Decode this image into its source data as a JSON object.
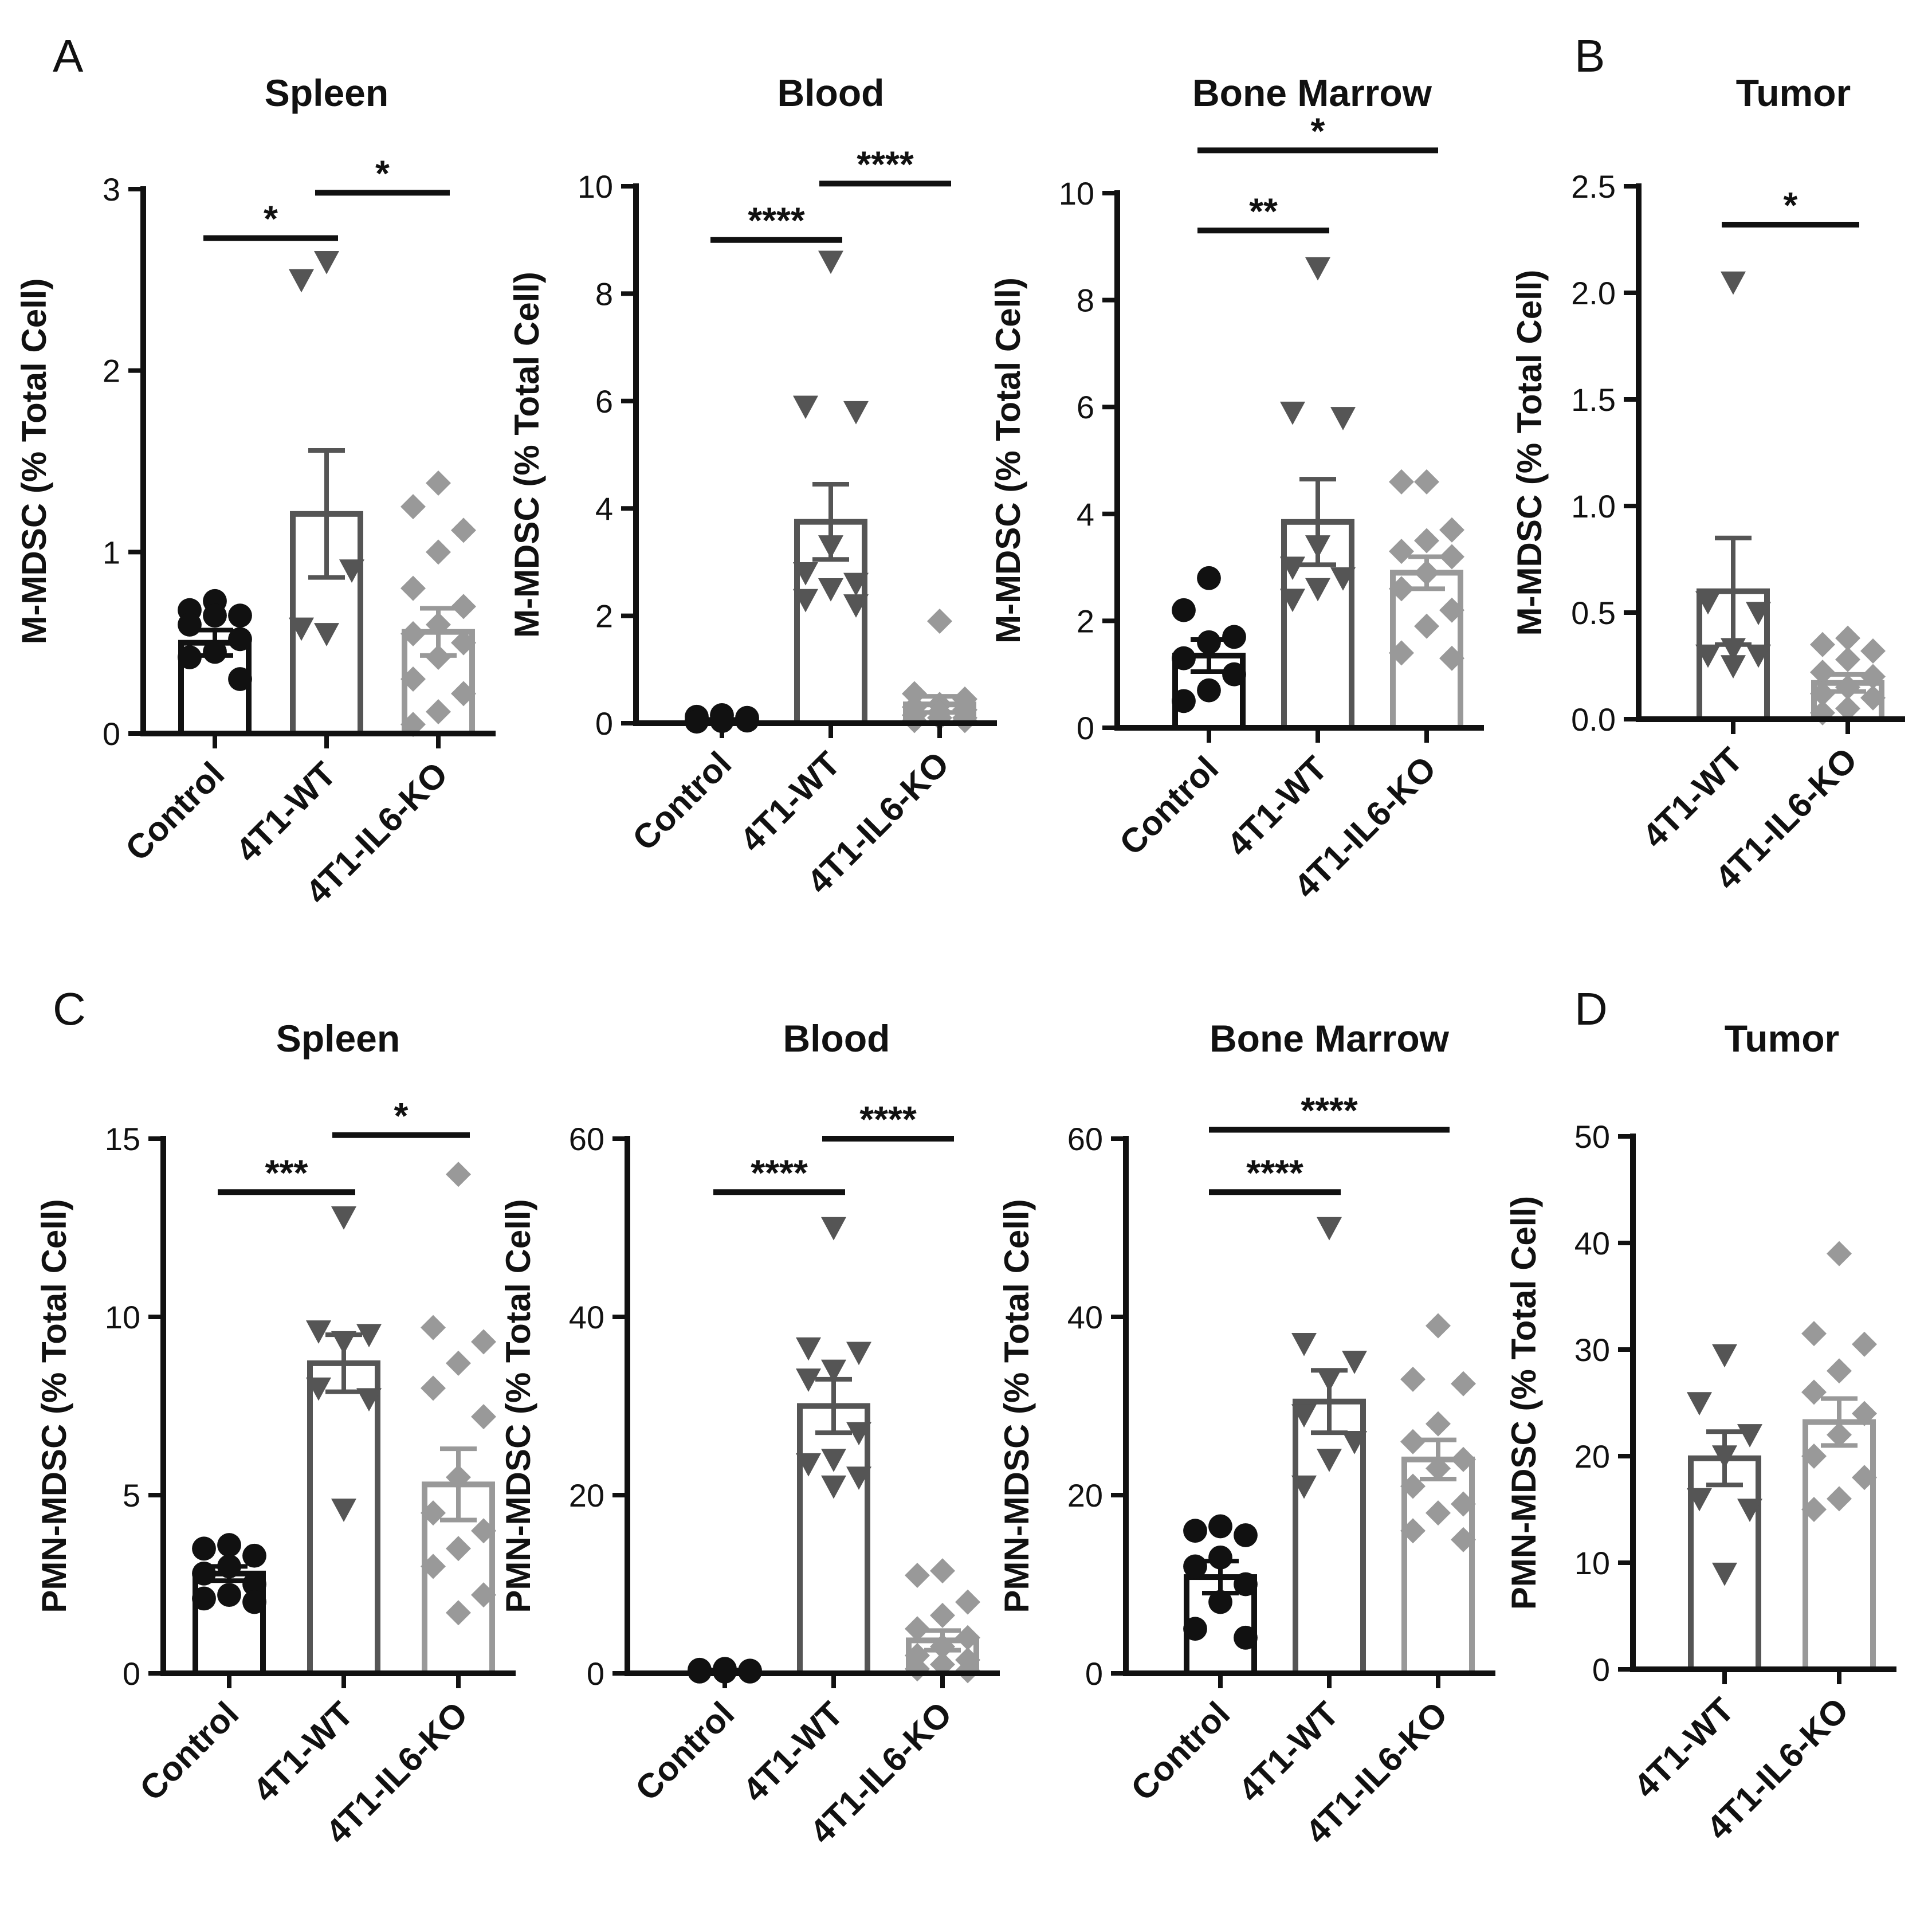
{
  "panel_letters": [
    "A",
    "B",
    "C",
    "D"
  ],
  "colors": {
    "control": "#111111",
    "wt": "#555555",
    "ko": "#999999",
    "axis": "#111111",
    "sig": "#111111"
  },
  "chart_data": [
    {
      "id": "A1",
      "panel": "A",
      "type": "bar",
      "title": "Spleen",
      "ylabel": "M-MDSC (% Total Cell)",
      "ylim": [
        0,
        3
      ],
      "yticks": [
        0,
        1,
        2,
        3
      ],
      "ytick_labels": [
        "0",
        "1",
        "2",
        "3"
      ],
      "categories": [
        "Control",
        "4T1-WT",
        "4T1-IL6-KO"
      ],
      "groups": [
        {
          "name": "Control",
          "mean": 0.5,
          "sem": 0.07,
          "points": [
            0.73,
            0.68,
            0.65,
            0.65,
            0.6,
            0.52,
            0.45,
            0.42,
            0.3
          ]
        },
        {
          "name": "4T1-WT",
          "mean": 1.21,
          "sem": 0.35,
          "points": [
            2.6,
            2.5,
            0.9,
            0.55,
            0.58
          ]
        },
        {
          "name": "4T1-IL6-KO",
          "mean": 0.56,
          "sem": 0.13,
          "points": [
            1.38,
            1.25,
            1.12,
            1.0,
            0.8,
            0.7,
            0.6,
            0.55,
            0.5,
            0.42,
            0.3,
            0.22,
            0.12,
            0.05
          ]
        }
      ],
      "significance": [
        {
          "from": 0,
          "to": 1,
          "y": 2.73,
          "label": "*"
        },
        {
          "from": 1,
          "to": 2,
          "y": 2.98,
          "label": "*"
        }
      ]
    },
    {
      "id": "A2",
      "panel": "A",
      "type": "bar",
      "title": "Blood",
      "ylabel": "M-MDSC (% Total Cell)",
      "ylim": [
        0,
        10
      ],
      "yticks": [
        0,
        2,
        4,
        6,
        8,
        10
      ],
      "ytick_labels": [
        "0",
        "2",
        "4",
        "6",
        "8",
        "10"
      ],
      "categories": [
        "Control",
        "4T1-WT",
        "4T1-IL6-KO"
      ],
      "groups": [
        {
          "name": "Control",
          "mean": 0.05,
          "sem": 0.02,
          "points": [
            0.15,
            0.12,
            0.1,
            0.08,
            0.06,
            0.05,
            0.04,
            0.03
          ]
        },
        {
          "name": "4T1-WT",
          "mean": 3.75,
          "sem": 0.7,
          "points": [
            8.6,
            5.9,
            5.8,
            3.3,
            2.8,
            2.6,
            2.5,
            2.3,
            2.2
          ]
        },
        {
          "name": "4T1-IL6-KO",
          "mean": 0.35,
          "sem": 0.15,
          "points": [
            1.9,
            0.55,
            0.45,
            0.35,
            0.3,
            0.25,
            0.2,
            0.15,
            0.1,
            0.1,
            0.05,
            0.05
          ]
        }
      ],
      "significance": [
        {
          "from": 0,
          "to": 1,
          "y": 9.0,
          "label": "****"
        },
        {
          "from": 1,
          "to": 2,
          "y": 10.05,
          "label": "****"
        }
      ]
    },
    {
      "id": "A3",
      "panel": "A",
      "type": "bar",
      "title": "Bone Marrow",
      "ylabel": "M-MDSC (% Total Cell)",
      "ylim": [
        0,
        10
      ],
      "yticks": [
        0,
        2,
        4,
        6,
        8,
        10
      ],
      "ytick_labels": [
        "0",
        "2",
        "4",
        "6",
        "8",
        "10"
      ],
      "categories": [
        "Control",
        "4T1-WT",
        "4T1-IL6-KO"
      ],
      "groups": [
        {
          "name": "Control",
          "mean": 1.35,
          "sem": 0.3,
          "points": [
            2.8,
            2.2,
            1.7,
            1.6,
            1.3,
            1.0,
            0.7,
            0.5
          ]
        },
        {
          "name": "4T1-WT",
          "mean": 3.85,
          "sem": 0.8,
          "points": [
            8.6,
            5.9,
            5.8,
            3.4,
            3.0,
            2.8,
            2.6,
            2.4
          ]
        },
        {
          "name": "4T1-IL6-KO",
          "mean": 2.9,
          "sem": 0.3,
          "points": [
            4.6,
            4.6,
            3.7,
            3.5,
            3.3,
            3.2,
            2.9,
            2.6,
            2.2,
            1.9,
            1.4,
            1.3
          ]
        }
      ],
      "significance": [
        {
          "from": 0,
          "to": 1,
          "y": 9.3,
          "label": "**"
        },
        {
          "from": 0,
          "to": 2,
          "y": 10.8,
          "label": "*"
        }
      ]
    },
    {
      "id": "B",
      "panel": "B",
      "type": "bar",
      "title": "Tumor",
      "ylabel": "M-MDSC (% Total Cell)",
      "ylim": [
        0,
        2.5
      ],
      "yticks": [
        0,
        0.5,
        1.0,
        1.5,
        2.0,
        2.5
      ],
      "ytick_labels": [
        "0.0",
        "0.5",
        "1.0",
        "1.5",
        "2.0",
        "2.5"
      ],
      "categories": [
        "4T1-WT",
        "4T1-IL6-KO"
      ],
      "groups": [
        {
          "name": "4T1-WT",
          "mean": 0.6,
          "sem": 0.25,
          "points": [
            2.05,
            0.55,
            0.5,
            0.33,
            0.3,
            0.3,
            0.25
          ]
        },
        {
          "name": "4T1-IL6-KO",
          "mean": 0.17,
          "sem": 0.04,
          "points": [
            0.38,
            0.35,
            0.32,
            0.28,
            0.22,
            0.2,
            0.15,
            0.12,
            0.1,
            0.05,
            0.03
          ]
        }
      ],
      "significance": [
        {
          "from": 0,
          "to": 1,
          "y": 2.32,
          "label": "*"
        }
      ]
    },
    {
      "id": "C1",
      "panel": "C",
      "type": "bar",
      "title": "Spleen",
      "ylabel": "PMN-MDSC (% Total Cell)",
      "ylim": [
        0,
        15
      ],
      "yticks": [
        0,
        5,
        10,
        15
      ],
      "ytick_labels": [
        "0",
        "5",
        "10",
        "15"
      ],
      "categories": [
        "Control",
        "4T1-WT",
        "4T1-IL6-KO"
      ],
      "groups": [
        {
          "name": "Control",
          "mean": 2.8,
          "sem": 0.2,
          "points": [
            3.6,
            3.5,
            3.3,
            3.0,
            2.8,
            2.5,
            2.2,
            2.1,
            2.0
          ]
        },
        {
          "name": "4T1-WT",
          "mean": 8.7,
          "sem": 0.8,
          "points": [
            12.8,
            9.6,
            9.5,
            9.3,
            8.0,
            7.7,
            4.6
          ]
        },
        {
          "name": "4T1-IL6-KO",
          "mean": 5.3,
          "sem": 1.0,
          "points": [
            14.0,
            9.7,
            9.3,
            8.7,
            8.0,
            7.2,
            5.5,
            4.5,
            4.0,
            3.5,
            3.0,
            2.2,
            1.7
          ]
        }
      ],
      "significance": [
        {
          "from": 0,
          "to": 1,
          "y": 13.5,
          "label": "***"
        },
        {
          "from": 1,
          "to": 2,
          "y": 15.1,
          "label": "*"
        }
      ]
    },
    {
      "id": "C2",
      "panel": "C",
      "type": "bar",
      "title": "Blood",
      "ylabel": "PMN-MDSC (% Total Cell)",
      "ylim": [
        0,
        60
      ],
      "yticks": [
        0,
        20,
        40,
        60
      ],
      "ytick_labels": [
        "0",
        "20",
        "40",
        "60"
      ],
      "categories": [
        "Control",
        "4T1-WT",
        "4T1-IL6-KO"
      ],
      "groups": [
        {
          "name": "Control",
          "mean": 0.3,
          "sem": 0.05,
          "points": [
            0.5,
            0.4,
            0.3,
            0.3,
            0.2,
            0.2,
            0.2
          ]
        },
        {
          "name": "4T1-WT",
          "mean": 30.0,
          "sem": 3.0,
          "points": [
            50.0,
            36.5,
            36.0,
            34.0,
            33.0,
            27.0,
            24.0,
            23.5,
            22.0,
            21.0
          ]
        },
        {
          "name": "4T1-IL6-KO",
          "mean": 3.7,
          "sem": 1.1,
          "points": [
            11.5,
            11.0,
            8.0,
            6.5,
            5.0,
            4.0,
            3.0,
            2.0,
            1.5,
            1.0,
            0.5,
            0.3
          ]
        }
      ],
      "significance": [
        {
          "from": 0,
          "to": 1,
          "y": 54.0,
          "label": "****"
        },
        {
          "from": 1,
          "to": 2,
          "y": 60.0,
          "label": "****"
        }
      ]
    },
    {
      "id": "C3",
      "panel": "C",
      "type": "bar",
      "title": "Bone Marrow",
      "ylabel": "PMN-MDSC (% Total Cell)",
      "ylim": [
        0,
        60
      ],
      "yticks": [
        0,
        20,
        40,
        60
      ],
      "ytick_labels": [
        "0",
        "20",
        "40",
        "60"
      ],
      "categories": [
        "Control",
        "4T1-WT",
        "4T1-IL6-KO"
      ],
      "groups": [
        {
          "name": "Control",
          "mean": 10.8,
          "sem": 1.8,
          "points": [
            16.5,
            16.0,
            15.5,
            13.0,
            12.0,
            10.0,
            8.0,
            5.0,
            4.0
          ]
        },
        {
          "name": "4T1-WT",
          "mean": 30.5,
          "sem": 3.5,
          "points": [
            50.0,
            37.0,
            35.0,
            33.0,
            29.0,
            26.0,
            24.0,
            21.0
          ]
        },
        {
          "name": "4T1-IL6-KO",
          "mean": 24.0,
          "sem": 2.2,
          "points": [
            39.0,
            33.0,
            32.5,
            28.0,
            26.0,
            24.0,
            23.0,
            21.0,
            19.0,
            18.0,
            16.0,
            15.0
          ]
        }
      ],
      "significance": [
        {
          "from": 0,
          "to": 1,
          "y": 54.0,
          "label": "****"
        },
        {
          "from": 0,
          "to": 2,
          "y": 61.0,
          "label": "****"
        }
      ]
    },
    {
      "id": "D",
      "panel": "D",
      "type": "bar",
      "title": "Tumor",
      "ylabel": "PMN-MDSC (% Total Cell)",
      "ylim": [
        0,
        50
      ],
      "yticks": [
        0,
        10,
        20,
        30,
        40,
        50
      ],
      "ytick_labels": [
        "0",
        "10",
        "20",
        "30",
        "40",
        "50"
      ],
      "categories": [
        "4T1-WT",
        "4T1-IL6-KO"
      ],
      "groups": [
        {
          "name": "4T1-WT",
          "mean": 19.8,
          "sem": 2.5,
          "points": [
            29.5,
            25.0,
            22.0,
            20.0,
            16.0,
            15.0,
            9.0
          ]
        },
        {
          "name": "4T1-IL6-KO",
          "mean": 23.2,
          "sem": 2.2,
          "points": [
            39.0,
            31.5,
            30.5,
            28.0,
            26.0,
            24.0,
            22.0,
            20.0,
            18.0,
            16.0,
            15.0
          ]
        }
      ],
      "significance": []
    }
  ]
}
